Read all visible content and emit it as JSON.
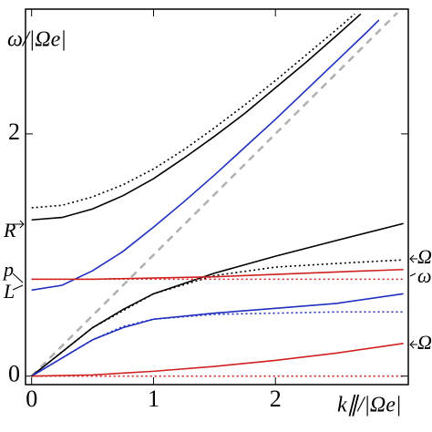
{
  "chart_data": {
    "type": "line",
    "x_label": "k∥/|Ωe|",
    "y_label": "ω/|Ωe|",
    "left_annotations": [
      "R",
      "p",
      "L"
    ],
    "right_annotations": [
      "Ω",
      "ω",
      "Ω"
    ],
    "xlim": [
      -0.05,
      3.09
    ],
    "ylim": [
      -0.07,
      3.03
    ],
    "xticks": [
      0,
      1,
      2
    ],
    "yticks": [
      0,
      2
    ],
    "series": [
      {
        "color": "#b0b0b0",
        "style": "dashed",
        "x": [
          0,
          3.0
        ],
        "values": [
          0,
          3.0
        ]
      },
      {
        "color": "#000000",
        "style": "solid",
        "x": [
          0,
          0.25,
          0.5,
          0.75,
          1,
          1.25,
          1.5,
          1.75,
          2,
          2.25,
          2.5,
          2.7
        ],
        "values": [
          1.29,
          1.31,
          1.38,
          1.49,
          1.63,
          1.8,
          1.98,
          2.17,
          2.38,
          2.59,
          2.81,
          2.99
        ]
      },
      {
        "color": "#000000",
        "style": "dotted",
        "x": [
          0,
          0.25,
          0.5,
          0.75,
          1,
          1.25,
          1.5,
          1.75,
          2,
          2.25,
          2.5,
          2.65
        ],
        "values": [
          1.39,
          1.41,
          1.48,
          1.58,
          1.71,
          1.87,
          2.05,
          2.24,
          2.44,
          2.65,
          2.86,
          2.99
        ]
      },
      {
        "color": "#1f2fbf",
        "style": "solid",
        "x": [
          0,
          0.25,
          0.5,
          0.75,
          1,
          1.25,
          1.5,
          1.75,
          2,
          2.25,
          2.5,
          2.75,
          2.85
        ],
        "values": [
          0.71,
          0.75,
          0.87,
          1.03,
          1.23,
          1.44,
          1.66,
          1.89,
          2.12,
          2.36,
          2.6,
          2.84,
          2.94
        ]
      },
      {
        "color": "#000000",
        "style": "solid",
        "x": [
          0,
          0.25,
          0.5,
          0.75,
          1,
          1.5,
          2,
          2.5,
          3.05
        ],
        "values": [
          0,
          0.2,
          0.4,
          0.55,
          0.68,
          0.85,
          0.99,
          1.12,
          1.26
        ]
      },
      {
        "color": "#000000",
        "style": "dotted",
        "x": [
          0,
          0.5,
          1,
          1.5,
          2,
          2.5,
          3.05
        ],
        "values": [
          0,
          0.4,
          0.68,
          0.83,
          0.9,
          0.93,
          0.96
        ]
      },
      {
        "color": "#d02020",
        "style": "solid",
        "x": [
          0,
          0.5,
          1,
          1.5,
          2,
          2.5,
          3.05
        ],
        "values": [
          0.8,
          0.8,
          0.81,
          0.82,
          0.84,
          0.86,
          0.88
        ]
      },
      {
        "color": "#d02020",
        "style": "dotted",
        "x": [
          0,
          3.05
        ],
        "values": [
          0.8,
          0.8
        ]
      },
      {
        "color": "#1f2fbf",
        "style": "solid",
        "x": [
          0,
          0.25,
          0.5,
          0.75,
          1,
          1.5,
          2,
          2.5,
          3.05
        ],
        "values": [
          0,
          0.15,
          0.3,
          0.4,
          0.47,
          0.52,
          0.56,
          0.6,
          0.68
        ]
      },
      {
        "color": "#1f2fbf",
        "style": "dotted",
        "x": [
          0,
          0.25,
          0.5,
          0.75,
          1,
          1.5,
          2,
          2.5,
          3.05
        ],
        "values": [
          0,
          0.15,
          0.3,
          0.41,
          0.47,
          0.51,
          0.52,
          0.53,
          0.53
        ]
      },
      {
        "color": "#d02020",
        "style": "solid",
        "x": [
          0,
          0.5,
          1,
          1.5,
          2,
          2.5,
          3.05
        ],
        "values": [
          0,
          0.01,
          0.04,
          0.08,
          0.13,
          0.19,
          0.27
        ]
      },
      {
        "color": "#d02020",
        "style": "dotted",
        "x": [
          0,
          3.05
        ],
        "values": [
          0,
          0
        ]
      }
    ]
  }
}
